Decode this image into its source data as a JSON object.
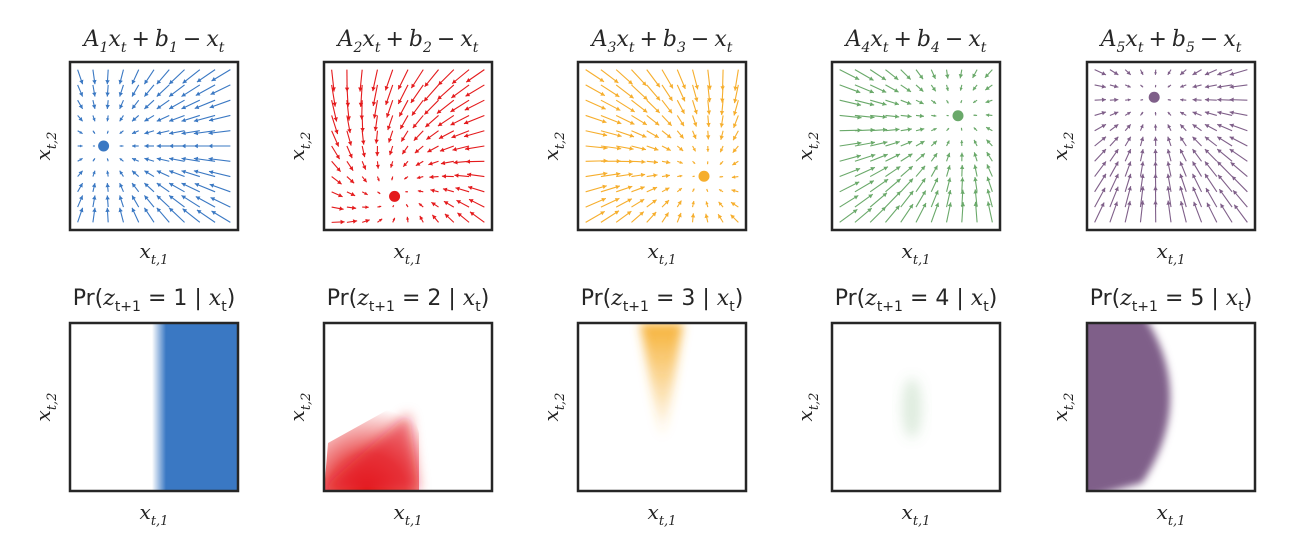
{
  "figure": {
    "axis_labels": {
      "x": "x",
      "x_sub": "t,1",
      "y": "x",
      "y_sub": "t,2"
    },
    "panels": [
      {
        "id": 1,
        "color": "#3a78c3",
        "title_top": {
          "A": "A",
          "a_sub": "1",
          "x": "x",
          "x_sub": "t",
          "plus": "+",
          "b": "b",
          "b_sub": "1",
          "minus": "−",
          "x2": "x",
          "x2_sub": "t"
        },
        "title_bottom": {
          "pr": "Pr(",
          "z": "z",
          "z_sub": "t+1",
          "eq": " = 1 | ",
          "x": "x",
          "x_sub": "t",
          "close": ")"
        }
      },
      {
        "id": 2,
        "color": "#e41a1c",
        "title_top": {
          "A": "A",
          "a_sub": "2",
          "x": "x",
          "x_sub": "t",
          "plus": "+",
          "b": "b",
          "b_sub": "2",
          "minus": "−",
          "x2": "x",
          "x2_sub": "t"
        },
        "title_bottom": {
          "pr": "Pr(",
          "z": "z",
          "z_sub": "t+1",
          "eq": " = 2 | ",
          "x": "x",
          "x_sub": "t",
          "close": ")"
        }
      },
      {
        "id": 3,
        "color": "#f6ae2d",
        "title_top": {
          "A": "A",
          "a_sub": "3",
          "x": "x",
          "x_sub": "t",
          "plus": "+",
          "b": "b",
          "b_sub": "3",
          "minus": "−",
          "x2": "x",
          "x2_sub": "t"
        },
        "title_bottom": {
          "pr": "Pr(",
          "z": "z",
          "z_sub": "t+1",
          "eq": " = 3 | ",
          "x": "x",
          "x_sub": "t",
          "close": ")"
        }
      },
      {
        "id": 4,
        "color": "#6aa96a",
        "title_top": {
          "A": "A",
          "a_sub": "4",
          "x": "x",
          "x_sub": "t",
          "plus": "+",
          "b": "b",
          "b_sub": "4",
          "minus": "−",
          "x2": "x",
          "x2_sub": "t"
        },
        "title_bottom": {
          "pr": "Pr(",
          "z": "z",
          "z_sub": "t+1",
          "eq": " = 4 | ",
          "x": "x",
          "x_sub": "t",
          "close": ")"
        }
      },
      {
        "id": 5,
        "color": "#7f5f89",
        "title_top": {
          "A": "A",
          "a_sub": "5",
          "x": "x",
          "x_sub": "t",
          "plus": "+",
          "b": "b",
          "b_sub": "5",
          "minus": "−",
          "x2": "x",
          "x2_sub": "t"
        },
        "title_bottom": {
          "pr": "Pr(",
          "z": "z",
          "z_sub": "t+1",
          "eq": " = 5 | ",
          "x": "x",
          "x_sub": "t",
          "close": ")"
        }
      }
    ]
  }
}
